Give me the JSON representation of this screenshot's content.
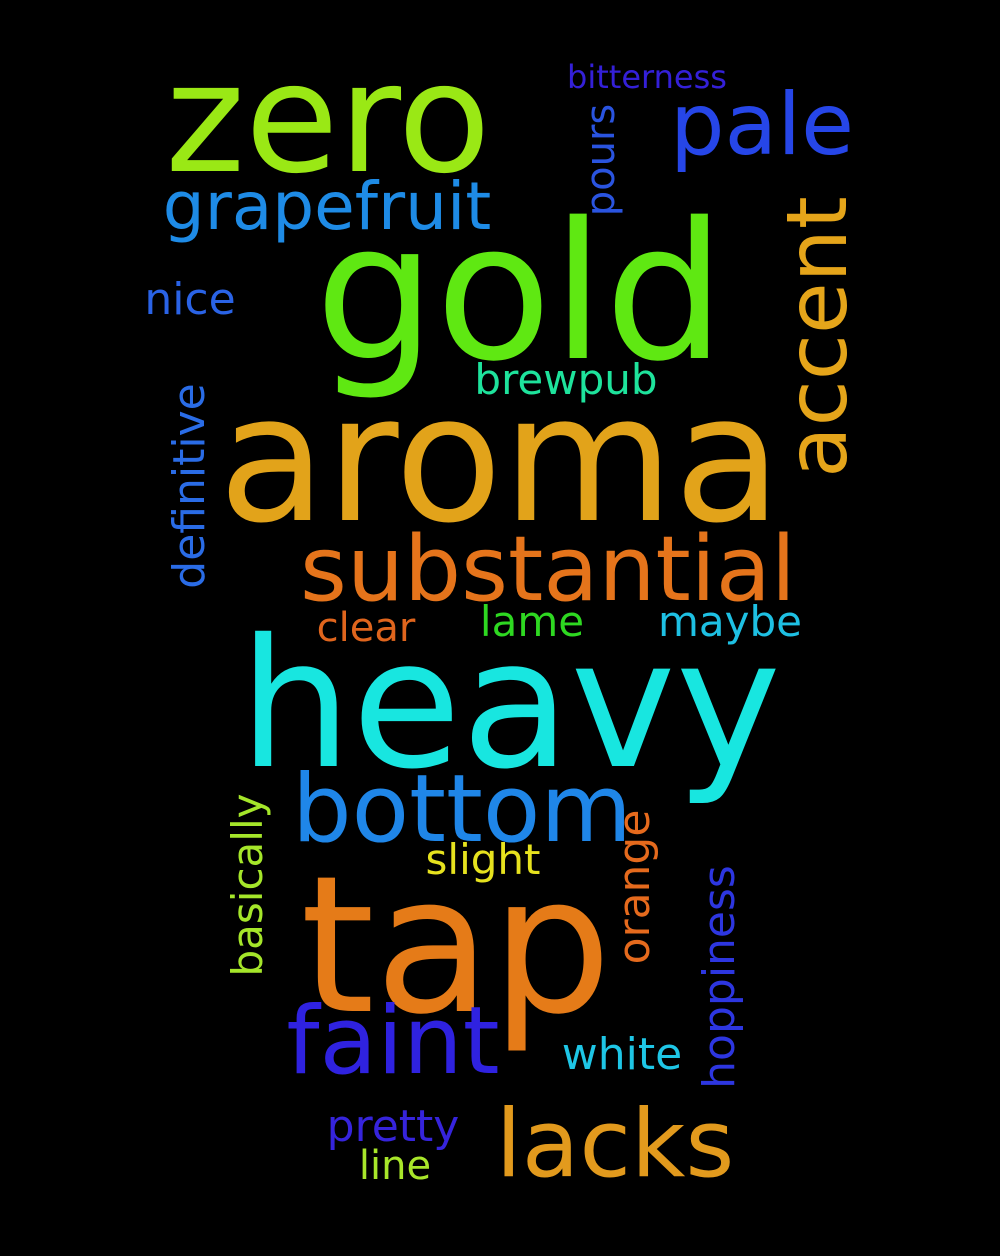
{
  "words": [
    {
      "text": "zero",
      "color": "#9ae815"
    },
    {
      "text": "gold",
      "color": "#5fe812"
    },
    {
      "text": "aroma",
      "color": "#e2a31a"
    },
    {
      "text": "heavy",
      "color": "#18e6e0"
    },
    {
      "text": "tap",
      "color": "#e57b18"
    },
    {
      "text": "substantial",
      "color": "#e5741b"
    },
    {
      "text": "bottom",
      "color": "#1f86e8"
    },
    {
      "text": "faint",
      "color": "#2f22e0"
    },
    {
      "text": "lacks",
      "color": "#e29a1d"
    },
    {
      "text": "pale",
      "color": "#2646e8"
    },
    {
      "text": "accent",
      "color": "#e5a51a"
    },
    {
      "text": "grapefruit",
      "color": "#1e8be6"
    },
    {
      "text": "bitterness",
      "color": "#3420d8"
    },
    {
      "text": "pours",
      "color": "#2a54e0"
    },
    {
      "text": "nice",
      "color": "#2a63e6"
    },
    {
      "text": "brewpub",
      "color": "#1ee39c"
    },
    {
      "text": "definitive",
      "color": "#2a6ce6"
    },
    {
      "text": "clear",
      "color": "#e0651d"
    },
    {
      "text": "lame",
      "color": "#2ed821"
    },
    {
      "text": "maybe",
      "color": "#1ec0e3"
    },
    {
      "text": "basically",
      "color": "#a5e62a"
    },
    {
      "text": "slight",
      "color": "#e6e21e"
    },
    {
      "text": "orange",
      "color": "#e56a1d"
    },
    {
      "text": "hoppiness",
      "color": "#2d36e0"
    },
    {
      "text": "white",
      "color": "#1ec6e6"
    },
    {
      "text": "pretty",
      "color": "#3624dc"
    },
    {
      "text": "line",
      "color": "#a8e62a"
    }
  ]
}
